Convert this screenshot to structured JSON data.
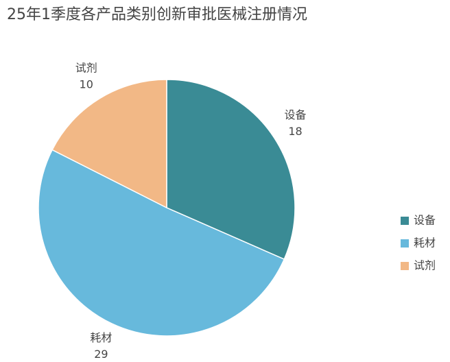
{
  "chart_data": {
    "type": "pie",
    "title": "25年1季度各产品类别创新审批医械注册情况",
    "categories": [
      "设备",
      "耗材",
      "试剂"
    ],
    "values": [
      18,
      29,
      10
    ],
    "colors": [
      "#3a8b95",
      "#67b9dc",
      "#f2b886"
    ],
    "legend": "right"
  }
}
